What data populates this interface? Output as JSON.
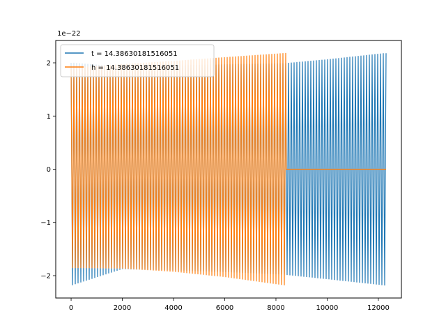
{
  "chart_data": {
    "type": "line",
    "title": "",
    "xlabel": "",
    "ylabel": "",
    "y_scale_label": "1e−22",
    "xlim": [
      -600,
      12900
    ],
    "ylim": [
      -2.42,
      2.42
    ],
    "x_ticks": [
      0,
      2000,
      4000,
      6000,
      8000,
      10000,
      12000
    ],
    "y_ticks": [
      -2,
      -1,
      0,
      1,
      2
    ],
    "y_tick_labels": [
      "−2",
      "−1",
      "0",
      "1",
      "2"
    ],
    "grid": false,
    "legend_position": "top-left",
    "series": [
      {
        "name": "t = 14.38630181516051",
        "color": "#1f77b4",
        "x_range": [
          0,
          12300
        ],
        "envelope": [
          {
            "x": 0,
            "upper": 2.0,
            "lower": -2.18
          },
          {
            "x": 2000,
            "upper": 1.92,
            "lower": -1.87
          },
          {
            "x": 4000,
            "upper": 1.95,
            "lower": -1.9
          },
          {
            "x": 6000,
            "upper": 1.97,
            "lower": -1.93
          },
          {
            "x": 8400,
            "upper": 1.99,
            "lower": -1.98
          },
          {
            "x": 10000,
            "upper": 2.06,
            "lower": -2.06
          },
          {
            "x": 12300,
            "upper": 2.18,
            "lower": -2.18
          }
        ]
      },
      {
        "name": "h = 14.38630181516051",
        "color": "#ff7f0e",
        "x_range": [
          0,
          12300
        ],
        "envelope": [
          {
            "x": 0,
            "upper": 1.9,
            "lower": -1.85
          },
          {
            "x": 2000,
            "upper": 1.97,
            "lower": -1.86
          },
          {
            "x": 4000,
            "upper": 2.03,
            "lower": -1.92
          },
          {
            "x": 6000,
            "upper": 2.1,
            "lower": -2.02
          },
          {
            "x": 8400,
            "upper": 2.18,
            "lower": -2.18
          }
        ],
        "flat_after_x": 8400,
        "flat_value": 0
      }
    ]
  }
}
